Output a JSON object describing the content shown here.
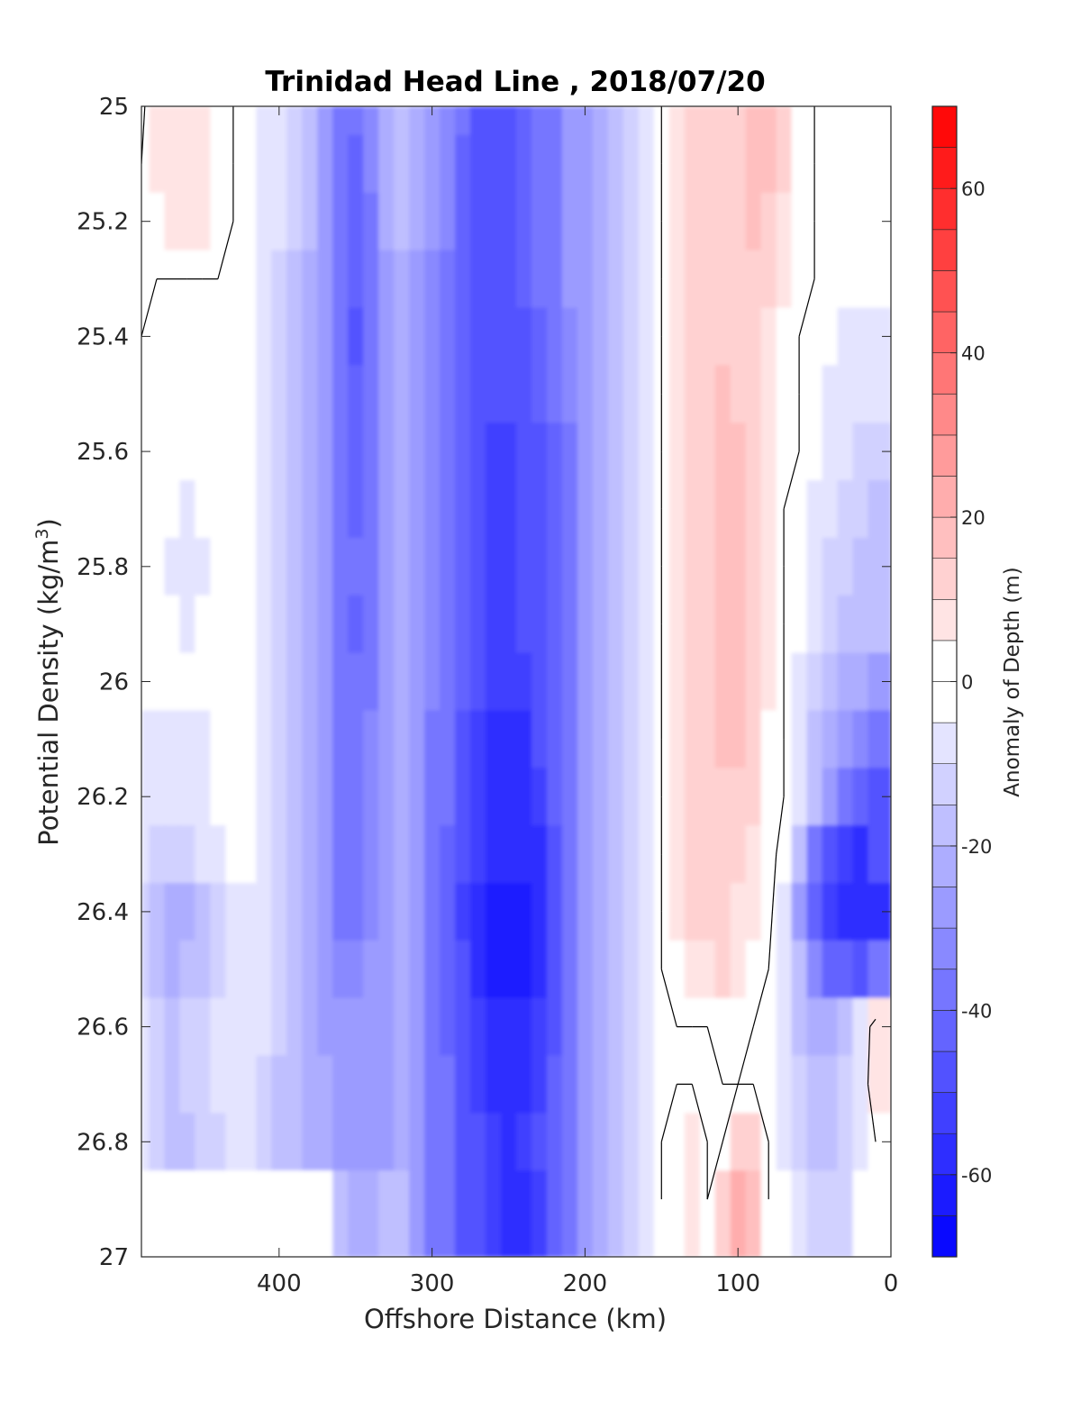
{
  "chart_data": {
    "type": "heatmap",
    "subtype": "filled-contour",
    "title": "Trinidad Head Line , 2018/07/20",
    "xlabel": "Offshore Distance (km)",
    "ylabel_main": "Potential Density (kg/m",
    "ylabel_sup": "3",
    "ylabel_tail": ")",
    "x_reversed": true,
    "y_reversed": true,
    "xlim": [
      490,
      0
    ],
    "ylim": [
      25,
      27
    ],
    "x_ticks": [
      400,
      300,
      200,
      100,
      0
    ],
    "x_tick_labels": [
      "400",
      "300",
      "200",
      "100",
      "0"
    ],
    "y_ticks": [
      25,
      25.2,
      25.4,
      25.6,
      25.8,
      26,
      26.2,
      26.4,
      26.6,
      26.8,
      27
    ],
    "y_tick_labels": [
      "25",
      "25.2",
      "25.4",
      "25.6",
      "25.8",
      "26",
      "26.2",
      "26.4",
      "26.6",
      "26.8",
      "27"
    ],
    "colorbar": {
      "label": "Anomaly of Depth (m)",
      "range": [
        -70,
        70
      ],
      "step": 5,
      "ticks": [
        60,
        40,
        20,
        0,
        -20,
        -40,
        -60
      ],
      "tick_labels": [
        "60",
        "40",
        "20",
        "0",
        "-20",
        "-40",
        "-60"
      ],
      "colormap": "blue-white-red",
      "zero_band": [
        -5,
        5
      ]
    },
    "zero_contours": "black",
    "x_samples": [
      490,
      480,
      470,
      460,
      450,
      440,
      430,
      420,
      410,
      400,
      390,
      380,
      370,
      360,
      350,
      340,
      330,
      320,
      310,
      300,
      290,
      280,
      270,
      260,
      250,
      240,
      230,
      220,
      210,
      200,
      190,
      180,
      170,
      160,
      150,
      140,
      130,
      120,
      110,
      100,
      90,
      80,
      70,
      60,
      50,
      40,
      30,
      20,
      10
    ],
    "y_samples": [
      25,
      25.1,
      25.2,
      25.3,
      25.4,
      25.5,
      25.6,
      25.7,
      25.8,
      25.9,
      26,
      26.1,
      26.2,
      26.3,
      26.4,
      26.5,
      26.6,
      26.7,
      26.8,
      26.9
    ],
    "anomaly_grid": [
      [
        -2,
        7,
        9,
        8,
        6,
        4,
        0,
        -3,
        -6,
        -10,
        -14,
        -20,
        -28,
        -36,
        -40,
        -33,
        -24,
        -20,
        -22,
        -28,
        -33,
        -40,
        -48,
        -50,
        -48,
        -45,
        -40,
        -36,
        -30,
        -26,
        -22,
        -16,
        -12,
        -8,
        0,
        7,
        10,
        12,
        12,
        14,
        16,
        15,
        10,
        4,
        0,
        0,
        0,
        0,
        0
      ],
      [
        0,
        6,
        8,
        8,
        6,
        4,
        0,
        -4,
        -8,
        -10,
        -14,
        -20,
        -28,
        -36,
        -42,
        -35,
        -24,
        -20,
        -24,
        -30,
        -35,
        -42,
        -48,
        -50,
        -48,
        -45,
        -40,
        -36,
        -30,
        -26,
        -22,
        -16,
        -12,
        -8,
        0,
        7,
        10,
        12,
        12,
        14,
        16,
        15,
        10,
        4,
        0,
        0,
        0,
        0,
        0
      ],
      [
        3,
        5,
        6,
        6,
        6,
        4,
        0,
        -4,
        -8,
        -10,
        -14,
        -20,
        -28,
        -36,
        -42,
        -36,
        -24,
        -20,
        -24,
        -30,
        -35,
        -42,
        -48,
        -50,
        -48,
        -45,
        -40,
        -36,
        -30,
        -26,
        -22,
        -16,
        -12,
        -8,
        0,
        7,
        10,
        12,
        12,
        14,
        15,
        12,
        8,
        4,
        0,
        0,
        0,
        0,
        0
      ],
      [
        1,
        0,
        0,
        0,
        0,
        0,
        0,
        -4,
        -8,
        -12,
        -16,
        -22,
        -30,
        -38,
        -44,
        -38,
        -26,
        -22,
        -26,
        -32,
        -36,
        -42,
        -48,
        -50,
        -48,
        -45,
        -40,
        -36,
        -30,
        -26,
        -22,
        -16,
        -12,
        -8,
        0,
        7,
        10,
        12,
        12,
        12,
        12,
        10,
        6,
        2,
        0,
        0,
        0,
        0,
        0
      ],
      [
        0,
        0,
        0,
        0,
        0,
        0,
        0,
        -4,
        -8,
        -12,
        -16,
        -22,
        -30,
        -38,
        -46,
        -40,
        -28,
        -24,
        -28,
        -32,
        -36,
        -42,
        -48,
        -50,
        -50,
        -48,
        -44,
        -38,
        -32,
        -26,
        -22,
        -16,
        -12,
        -8,
        0,
        7,
        10,
        12,
        12,
        12,
        10,
        7,
        4,
        0,
        -2,
        -4,
        -6,
        -6,
        -8
      ],
      [
        0,
        0,
        0,
        -2,
        0,
        0,
        0,
        -4,
        -8,
        -12,
        -16,
        -22,
        -30,
        -38,
        -45,
        -40,
        -28,
        -22,
        -26,
        -32,
        -36,
        -42,
        -48,
        -50,
        -50,
        -48,
        -44,
        -40,
        -34,
        -28,
        -22,
        -16,
        -12,
        -8,
        0,
        7,
        10,
        14,
        16,
        14,
        10,
        7,
        2,
        0,
        -4,
        -6,
        -8,
        -8,
        -10
      ],
      [
        0,
        0,
        -4,
        -4,
        0,
        0,
        0,
        -4,
        -8,
        -12,
        -16,
        -22,
        -30,
        -38,
        -44,
        -38,
        -28,
        -22,
        -26,
        -32,
        -36,
        -42,
        -48,
        -52,
        -52,
        -50,
        -46,
        -42,
        -36,
        -30,
        -22,
        -16,
        -12,
        -8,
        0,
        7,
        10,
        14,
        16,
        15,
        10,
        6,
        2,
        0,
        -4,
        -8,
        -10,
        -12,
        -14
      ],
      [
        0,
        0,
        -5,
        -6,
        -4,
        0,
        0,
        -4,
        -8,
        -12,
        -16,
        -22,
        -30,
        -38,
        -42,
        -38,
        -28,
        -22,
        -26,
        -32,
        -36,
        -42,
        -48,
        -52,
        -52,
        -50,
        -48,
        -44,
        -38,
        -30,
        -22,
        -16,
        -12,
        -8,
        0,
        7,
        10,
        14,
        16,
        15,
        10,
        6,
        0,
        -2,
        -6,
        -10,
        -12,
        -14,
        -16
      ],
      [
        0,
        0,
        -6,
        -8,
        -6,
        0,
        0,
        -4,
        -8,
        -12,
        -16,
        -22,
        -30,
        -38,
        -40,
        -36,
        -28,
        -22,
        -26,
        -32,
        -38,
        -42,
        -48,
        -52,
        -52,
        -50,
        -48,
        -44,
        -38,
        -30,
        -22,
        -16,
        -12,
        -8,
        0,
        7,
        10,
        14,
        16,
        15,
        10,
        6,
        0,
        -4,
        -8,
        -12,
        -14,
        -16,
        -18
      ],
      [
        0,
        0,
        -4,
        -6,
        -4,
        0,
        0,
        -4,
        -8,
        -12,
        -16,
        -22,
        -30,
        -38,
        -42,
        -38,
        -28,
        -22,
        -26,
        -34,
        -38,
        -44,
        -48,
        -52,
        -52,
        -50,
        -48,
        -42,
        -36,
        -28,
        -22,
        -16,
        -12,
        -8,
        0,
        7,
        10,
        14,
        16,
        15,
        10,
        6,
        0,
        -4,
        -10,
        -14,
        -16,
        -18,
        -20
      ],
      [
        0,
        0,
        0,
        0,
        0,
        0,
        0,
        -4,
        -8,
        -12,
        -16,
        -22,
        -30,
        -38,
        -40,
        -36,
        -28,
        -22,
        -26,
        -34,
        -38,
        -44,
        -50,
        -54,
        -54,
        -52,
        -48,
        -42,
        -36,
        -28,
        -22,
        -16,
        -12,
        -8,
        0,
        7,
        10,
        14,
        16,
        15,
        10,
        6,
        0,
        -6,
        -12,
        -18,
        -22,
        -24,
        -26
      ],
      [
        -6,
        -6,
        -6,
        -6,
        -6,
        0,
        0,
        -4,
        -8,
        -12,
        -16,
        -22,
        -30,
        -38,
        -38,
        -34,
        -28,
        -22,
        -28,
        -36,
        -40,
        -46,
        -52,
        -56,
        -58,
        -56,
        -50,
        -44,
        -36,
        -28,
        -22,
        -16,
        -12,
        -8,
        0,
        7,
        10,
        14,
        16,
        15,
        10,
        4,
        0,
        -8,
        -16,
        -22,
        -28,
        -34,
        -38
      ],
      [
        -8,
        -8,
        -8,
        -8,
        -6,
        0,
        0,
        -4,
        -8,
        -12,
        -16,
        -22,
        -30,
        -36,
        -36,
        -32,
        -28,
        -22,
        -28,
        -36,
        -40,
        -48,
        -52,
        -56,
        -58,
        -58,
        -52,
        -44,
        -36,
        -28,
        -22,
        -16,
        -12,
        -8,
        0,
        7,
        10,
        14,
        14,
        12,
        10,
        4,
        0,
        -10,
        -20,
        -28,
        -36,
        -44,
        -50
      ],
      [
        -10,
        -12,
        -14,
        -12,
        -10,
        -6,
        0,
        -4,
        -8,
        -12,
        -16,
        -22,
        -30,
        -36,
        -36,
        -32,
        -28,
        -22,
        -28,
        -36,
        -42,
        -50,
        -54,
        -58,
        -60,
        -60,
        -56,
        -46,
        -38,
        -30,
        -22,
        -16,
        -12,
        -8,
        0,
        7,
        10,
        12,
        10,
        10,
        8,
        4,
        -4,
        -20,
        -36,
        -46,
        -52,
        -56,
        -50
      ],
      [
        -14,
        -16,
        -22,
        -22,
        -16,
        -12,
        -8,
        -8,
        -10,
        -12,
        -16,
        -22,
        -30,
        -36,
        -36,
        -32,
        -28,
        -22,
        -28,
        -38,
        -44,
        -52,
        -58,
        -62,
        -64,
        -64,
        -60,
        -48,
        -38,
        -30,
        -22,
        -16,
        -12,
        -8,
        0,
        7,
        10,
        10,
        10,
        8,
        6,
        2,
        -6,
        -26,
        -44,
        -54,
        -60,
        -60,
        -58
      ],
      [
        -14,
        -16,
        -22,
        -20,
        -16,
        -12,
        -8,
        -8,
        -10,
        -12,
        -16,
        -22,
        -30,
        -34,
        -34,
        -30,
        -26,
        -22,
        -28,
        -38,
        -44,
        -50,
        -56,
        -62,
        -64,
        -64,
        -58,
        -48,
        -38,
        -30,
        -22,
        -16,
        -12,
        -8,
        0,
        2,
        6,
        8,
        10,
        8,
        4,
        0,
        -6,
        -20,
        -34,
        -42,
        -44,
        -46,
        -40
      ],
      [
        -10,
        -14,
        -16,
        -14,
        -12,
        -10,
        -8,
        -8,
        -10,
        -14,
        -18,
        -22,
        -28,
        -30,
        -30,
        -30,
        -26,
        -22,
        -28,
        -36,
        -42,
        -48,
        -54,
        -58,
        -60,
        -58,
        -54,
        -46,
        -38,
        -30,
        -22,
        -16,
        -12,
        -8,
        0,
        0,
        0,
        0,
        4,
        2,
        0,
        0,
        -6,
        -16,
        -22,
        -24,
        -20,
        -10,
        6
      ],
      [
        -10,
        -14,
        -16,
        -14,
        -12,
        -10,
        -8,
        -10,
        -12,
        -16,
        -18,
        -22,
        -24,
        -26,
        -28,
        -28,
        -26,
        -24,
        -28,
        -36,
        -40,
        -46,
        -52,
        -56,
        -58,
        -56,
        -52,
        -44,
        -38,
        -30,
        -22,
        -16,
        -12,
        -8,
        0,
        0,
        0,
        0,
        0,
        0,
        0,
        0,
        -6,
        -14,
        -18,
        -16,
        -12,
        -8,
        8
      ],
      [
        -10,
        -14,
        -16,
        -16,
        -14,
        -12,
        -10,
        -10,
        -12,
        -16,
        -18,
        -22,
        -24,
        -26,
        -28,
        -28,
        -26,
        -24,
        -28,
        -36,
        -40,
        -46,
        -50,
        -54,
        -56,
        -54,
        -50,
        -44,
        -38,
        -30,
        -22,
        -16,
        -12,
        -8,
        0,
        4,
        6,
        0,
        0,
        10,
        14,
        0,
        -6,
        -12,
        -16,
        -16,
        -12,
        -6,
        0
      ],
      [
        0,
        0,
        0,
        0,
        0,
        0,
        0,
        0,
        0,
        0,
        0,
        0,
        0,
        -18,
        -22,
        -22,
        -20,
        -18,
        -26,
        -36,
        -40,
        -46,
        -50,
        -54,
        -56,
        -56,
        -52,
        -44,
        -38,
        -30,
        -22,
        -16,
        -12,
        -8,
        0,
        4,
        6,
        0,
        12,
        24,
        18,
        0,
        -4,
        -10,
        -14,
        -14,
        -12,
        0,
        0
      ]
    ]
  }
}
